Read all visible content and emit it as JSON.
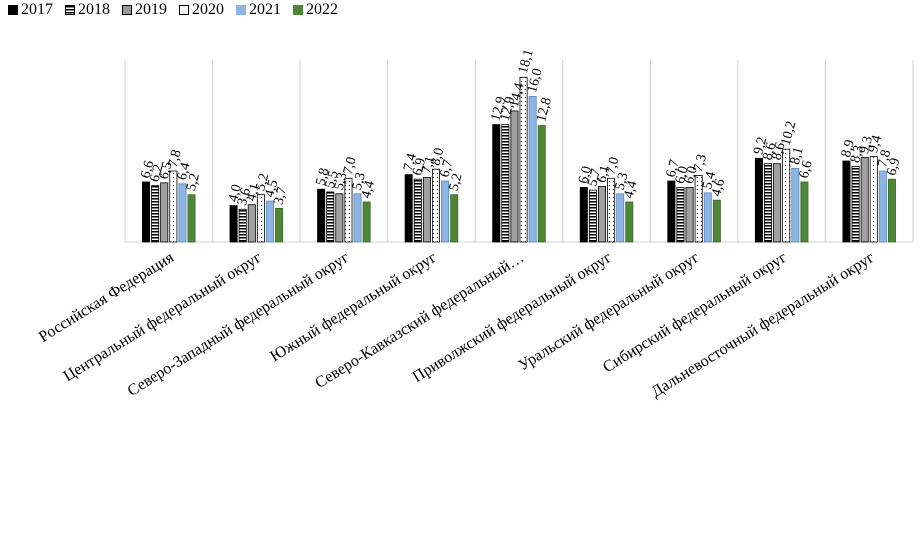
{
  "chart_data": {
    "type": "bar",
    "categories": [
      "Российская Федерация",
      "Центральный федеральный округ",
      "Северо-Западный федеральный округ",
      "Южный федеральный округ",
      "Северо-Кавказский федеральный…",
      "Приволжский федеральный округ",
      "Уральский федеральный округ",
      "Сибирский федеральный округ",
      "Дальневосточный федеральный округ"
    ],
    "series": [
      {
        "name": "2017",
        "values": [
          6.6,
          4.0,
          5.8,
          7.4,
          12.9,
          6.0,
          6.7,
          9.2,
          8.9
        ],
        "labels": [
          "6,6",
          "4,0",
          "5,8",
          "7,4",
          "12,9",
          "6,0",
          "6,7",
          "9,2",
          "8,9"
        ],
        "color": "#000000"
      },
      {
        "name": "2018",
        "values": [
          6.2,
          3.6,
          5.5,
          6.9,
          12.9,
          5.7,
          6.0,
          8.6,
          8.3
        ],
        "labels": [
          "6,2",
          "3,6",
          "5,5",
          "6,9",
          "12,9",
          "5,7",
          "6,0",
          "8,6",
          "8,3"
        ],
        "color": "#000000"
      },
      {
        "name": "2019",
        "values": [
          6.5,
          4.1,
          5.3,
          7.1,
          14.4,
          6.1,
          6.0,
          8.6,
          9.3
        ],
        "labels": [
          "6,5",
          "4,1",
          "5,3",
          "7,1",
          "14,4",
          "6,1",
          "6,0",
          "8,6",
          "9,3"
        ],
        "color": "#999999"
      },
      {
        "name": "2020",
        "values": [
          7.8,
          5.2,
          7.0,
          8.0,
          18.1,
          7.0,
          7.3,
          10.2,
          9.4
        ],
        "labels": [
          "7,8",
          "5,2",
          "7,0",
          "8,0",
          "18,1",
          "7,0",
          "7,3",
          "10,2",
          "9,4"
        ],
        "color": "#ffffff"
      },
      {
        "name": "2021",
        "values": [
          6.4,
          4.5,
          5.3,
          6.7,
          16.0,
          5.3,
          5.4,
          8.1,
          7.8
        ],
        "labels": [
          "6,4",
          "4,5",
          "5,3",
          "6,7",
          "16,0",
          "5,3",
          "5,4",
          "8,1",
          "7,8"
        ],
        "color": "#8db4e2"
      },
      {
        "name": "2022",
        "values": [
          5.2,
          3.7,
          4.4,
          5.2,
          12.8,
          4.4,
          4.6,
          6.6,
          6.9
        ],
        "labels": [
          "5,2",
          "3,7",
          "4,4",
          "5,2",
          "12,8",
          "4,4",
          "4,6",
          "6,6",
          "6,9"
        ],
        "color": "#4e8537"
      }
    ],
    "ylim": [
      0,
      20
    ],
    "grid": false,
    "legend_position": "top-left",
    "xlabel": "",
    "ylabel": "",
    "title": ""
  }
}
